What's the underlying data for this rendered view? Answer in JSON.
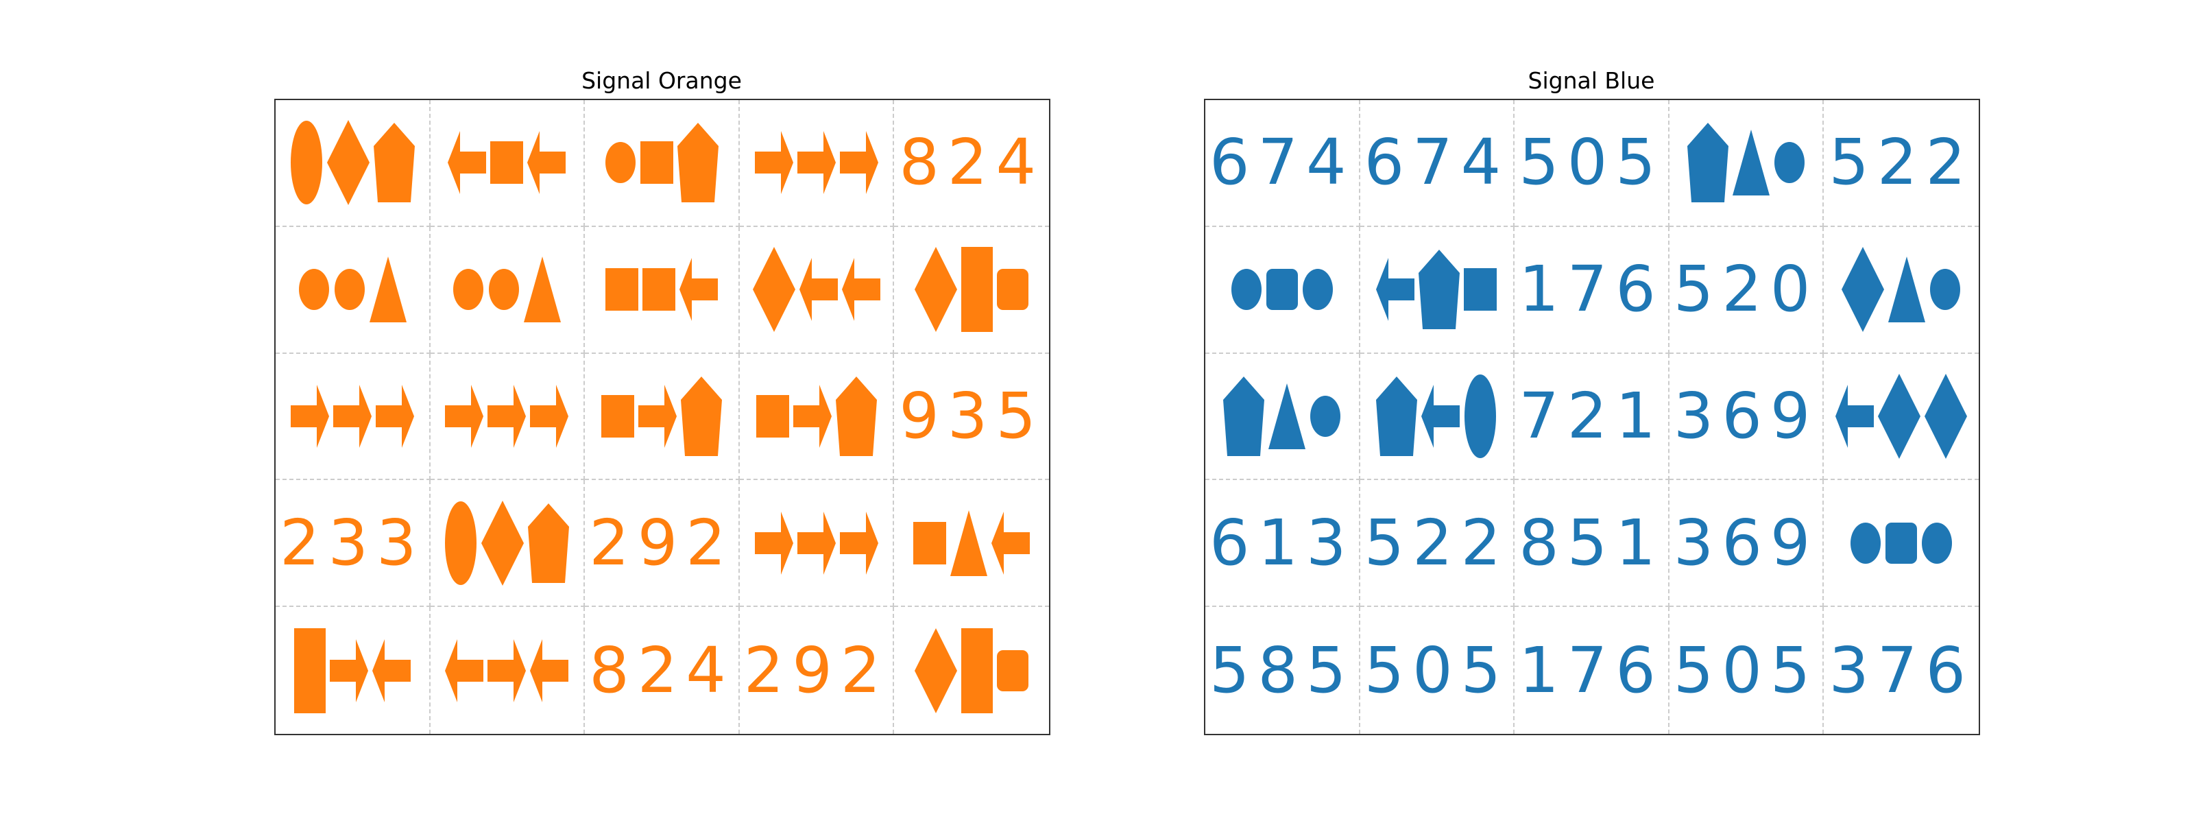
{
  "panels": [
    {
      "id": "left",
      "title": "Signal Orange",
      "color": "#ff7f0e",
      "cells": [
        {
          "shapes": [
            "ellipse-tall",
            "diamond",
            "pentagon"
          ]
        },
        {
          "shapes": [
            "arrow-left",
            "square",
            "arrow-left"
          ]
        },
        {
          "shapes": [
            "ellipse",
            "square",
            "pentagon"
          ]
        },
        {
          "shapes": [
            "arrow-right",
            "arrow-right",
            "arrow-right"
          ]
        },
        {
          "text": "824"
        },
        {
          "shapes": [
            "ellipse",
            "ellipse",
            "triangle"
          ]
        },
        {
          "shapes": [
            "ellipse",
            "ellipse",
            "triangle"
          ]
        },
        {
          "shapes": [
            "square",
            "square",
            "arrow-left"
          ]
        },
        {
          "shapes": [
            "diamond",
            "arrow-left",
            "arrow-left"
          ]
        },
        {
          "shapes": [
            "diamond",
            "rect-tall",
            "rounded"
          ]
        },
        {
          "shapes": [
            "arrow-right",
            "arrow-right",
            "arrow-right"
          ]
        },
        {
          "shapes": [
            "arrow-right",
            "arrow-right",
            "arrow-right"
          ]
        },
        {
          "shapes": [
            "square",
            "arrow-right",
            "pentagon"
          ]
        },
        {
          "shapes": [
            "square",
            "arrow-right",
            "pentagon"
          ]
        },
        {
          "text": "935"
        },
        {
          "text": "233"
        },
        {
          "shapes": [
            "ellipse-tall",
            "diamond",
            "pentagon"
          ]
        },
        {
          "text": "292"
        },
        {
          "shapes": [
            "arrow-right",
            "arrow-right",
            "arrow-right"
          ]
        },
        {
          "shapes": [
            "square",
            "triangle",
            "arrow-left"
          ]
        },
        {
          "shapes": [
            "rect-tall",
            "arrow-right",
            "arrow-left"
          ]
        },
        {
          "shapes": [
            "arrow-left",
            "arrow-right",
            "arrow-left"
          ]
        },
        {
          "text": "824"
        },
        {
          "text": "292"
        },
        {
          "shapes": [
            "diamond",
            "rect-tall",
            "rounded"
          ]
        }
      ]
    },
    {
      "id": "right",
      "title": "Signal Blue",
      "color": "#1f77b4",
      "cells": [
        {
          "text": "674"
        },
        {
          "text": "674"
        },
        {
          "text": "505"
        },
        {
          "shapes": [
            "pentagon",
            "triangle",
            "ellipse"
          ]
        },
        {
          "text": "522"
        },
        {
          "shapes": [
            "ellipse",
            "rounded",
            "ellipse"
          ]
        },
        {
          "shapes": [
            "arrow-left",
            "pentagon",
            "square"
          ]
        },
        {
          "text": "176"
        },
        {
          "text": "520"
        },
        {
          "shapes": [
            "diamond",
            "triangle",
            "ellipse"
          ]
        },
        {
          "shapes": [
            "pentagon",
            "triangle",
            "ellipse"
          ]
        },
        {
          "shapes": [
            "pentagon",
            "arrow-left",
            "ellipse-tall"
          ]
        },
        {
          "text": "721"
        },
        {
          "text": "369"
        },
        {
          "shapes": [
            "arrow-left",
            "diamond",
            "diamond"
          ]
        },
        {
          "text": "613"
        },
        {
          "text": "522"
        },
        {
          "text": "851"
        },
        {
          "text": "369"
        },
        {
          "shapes": [
            "ellipse",
            "rounded",
            "ellipse"
          ]
        },
        {
          "text": "585"
        },
        {
          "text": "505"
        },
        {
          "text": "176"
        },
        {
          "text": "505"
        },
        {
          "text": "376"
        }
      ]
    }
  ]
}
